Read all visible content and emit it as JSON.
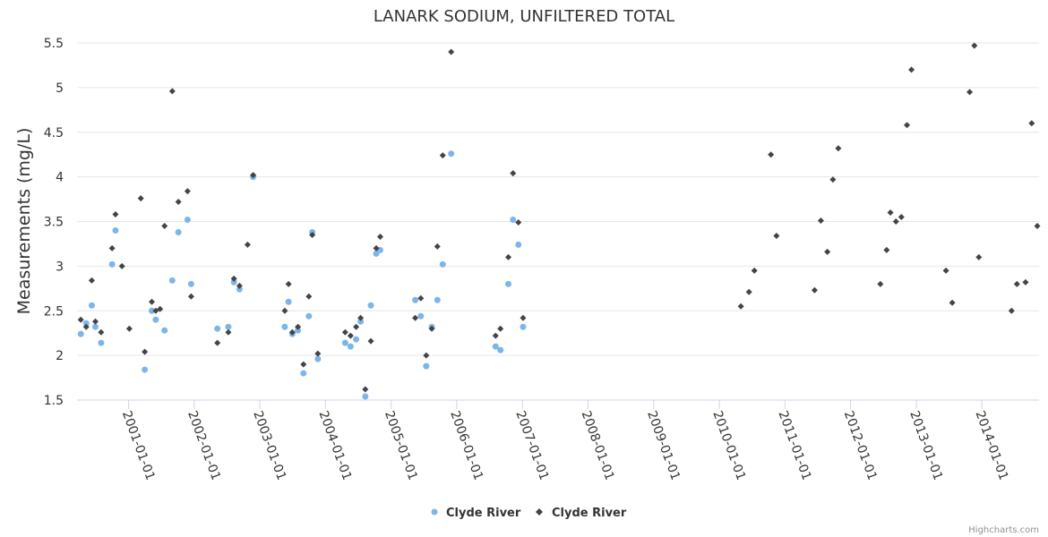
{
  "credits": "Highcharts.com",
  "chart_data": {
    "type": "scatter",
    "title": "LANARK SODIUM, UNFILTERED TOTAL",
    "xlabel": "",
    "ylabel": "Measurements (mg/L)",
    "ylim": [
      1.5,
      5.5
    ],
    "yticks": [
      "1.5",
      "2",
      "2.5",
      "3",
      "3.5",
      "4",
      "4.5",
      "5",
      "5.5"
    ],
    "xlim": [
      "2000-03-20",
      "2014-11-15"
    ],
    "xticks": [
      "2001-01-01",
      "2002-01-01",
      "2003-01-01",
      "2004-01-01",
      "2005-01-01",
      "2006-01-01",
      "2007-01-01",
      "2008-01-01",
      "2009-01-01",
      "2010-01-01",
      "2011-01-01",
      "2012-01-01",
      "2013-01-01",
      "2014-01-01"
    ],
    "grid": true,
    "legend": "bottom-center",
    "series": [
      {
        "name": "Clyde River",
        "marker": "circle",
        "color": "#7cb5ec",
        "points": [
          [
            "2000-04-10",
            2.24
          ],
          [
            "2000-05-10",
            2.36
          ],
          [
            "2000-06-10",
            2.56
          ],
          [
            "2000-06-30",
            2.32
          ],
          [
            "2000-08-01",
            2.14
          ],
          [
            "2000-10-01",
            3.02
          ],
          [
            "2000-10-20",
            3.4
          ],
          [
            "2001-04-01",
            1.84
          ],
          [
            "2001-05-10",
            2.5
          ],
          [
            "2001-06-01",
            2.4
          ],
          [
            "2001-07-20",
            2.28
          ],
          [
            "2001-09-01",
            2.84
          ],
          [
            "2001-10-05",
            3.38
          ],
          [
            "2001-11-25",
            3.52
          ],
          [
            "2001-12-15",
            2.8
          ],
          [
            "2002-05-10",
            2.3
          ],
          [
            "2002-07-10",
            2.32
          ],
          [
            "2002-08-10",
            2.82
          ],
          [
            "2002-09-10",
            2.74
          ],
          [
            "2002-11-25",
            4.0
          ],
          [
            "2003-05-20",
            2.32
          ],
          [
            "2003-06-10",
            2.6
          ],
          [
            "2003-07-01",
            2.24
          ],
          [
            "2003-08-01",
            2.28
          ],
          [
            "2003-09-01",
            1.8
          ],
          [
            "2003-10-01",
            2.44
          ],
          [
            "2003-10-20",
            3.38
          ],
          [
            "2003-11-20",
            1.96
          ],
          [
            "2004-04-20",
            2.14
          ],
          [
            "2004-05-20",
            2.1
          ],
          [
            "2004-06-20",
            2.18
          ],
          [
            "2004-07-15",
            2.38
          ],
          [
            "2004-08-10",
            1.54
          ],
          [
            "2004-09-10",
            2.56
          ],
          [
            "2004-10-10",
            3.14
          ],
          [
            "2004-11-01",
            3.18
          ],
          [
            "2005-05-15",
            2.62
          ],
          [
            "2005-06-15",
            2.44
          ],
          [
            "2005-07-15",
            1.88
          ],
          [
            "2005-08-15",
            2.32
          ],
          [
            "2005-09-15",
            2.62
          ],
          [
            "2005-10-15",
            3.02
          ],
          [
            "2005-12-01",
            4.26
          ],
          [
            "2006-08-05",
            2.1
          ],
          [
            "2006-09-01",
            2.06
          ],
          [
            "2006-10-15",
            2.8
          ],
          [
            "2006-11-10",
            3.52
          ],
          [
            "2006-12-10",
            3.24
          ],
          [
            "2007-01-05",
            2.32
          ]
        ]
      },
      {
        "name": "Clyde River",
        "marker": "diamond",
        "color": "#434348",
        "points": [
          [
            "2000-04-10",
            2.4
          ],
          [
            "2000-05-10",
            2.32
          ],
          [
            "2000-06-10",
            2.84
          ],
          [
            "2000-06-30",
            2.38
          ],
          [
            "2000-08-01",
            2.26
          ],
          [
            "2000-10-01",
            3.2
          ],
          [
            "2000-10-20",
            3.58
          ],
          [
            "2000-11-25",
            3.0
          ],
          [
            "2001-01-05",
            2.3
          ],
          [
            "2001-03-10",
            3.76
          ],
          [
            "2001-04-01",
            2.04
          ],
          [
            "2001-05-10",
            2.6
          ],
          [
            "2001-06-01",
            2.5
          ],
          [
            "2001-06-25",
            2.52
          ],
          [
            "2001-07-20",
            3.45
          ],
          [
            "2001-09-01",
            4.96
          ],
          [
            "2001-10-05",
            3.72
          ],
          [
            "2001-11-25",
            3.84
          ],
          [
            "2001-12-15",
            2.66
          ],
          [
            "2002-05-10",
            2.14
          ],
          [
            "2002-07-10",
            2.26
          ],
          [
            "2002-08-10",
            2.86
          ],
          [
            "2002-09-10",
            2.78
          ],
          [
            "2002-10-25",
            3.24
          ],
          [
            "2002-11-25",
            4.02
          ],
          [
            "2003-05-20",
            2.5
          ],
          [
            "2003-06-10",
            2.8
          ],
          [
            "2003-07-01",
            2.26
          ],
          [
            "2003-08-01",
            2.32
          ],
          [
            "2003-09-01",
            1.9
          ],
          [
            "2003-10-01",
            2.66
          ],
          [
            "2003-10-20",
            3.35
          ],
          [
            "2003-11-20",
            2.02
          ],
          [
            "2004-04-20",
            2.26
          ],
          [
            "2004-05-20",
            2.22
          ],
          [
            "2004-06-20",
            2.32
          ],
          [
            "2004-07-15",
            2.42
          ],
          [
            "2004-08-10",
            1.62
          ],
          [
            "2004-09-10",
            2.16
          ],
          [
            "2004-10-10",
            3.2
          ],
          [
            "2004-11-01",
            3.33
          ],
          [
            "2005-05-15",
            2.42
          ],
          [
            "2005-06-15",
            2.64
          ],
          [
            "2005-07-15",
            2.0
          ],
          [
            "2005-08-15",
            2.3
          ],
          [
            "2005-09-15",
            3.22
          ],
          [
            "2005-10-15",
            4.24
          ],
          [
            "2005-12-01",
            5.4
          ],
          [
            "2006-08-05",
            2.22
          ],
          [
            "2006-09-01",
            2.3
          ],
          [
            "2006-10-15",
            3.1
          ],
          [
            "2006-11-10",
            4.04
          ],
          [
            "2006-12-10",
            3.49
          ],
          [
            "2007-01-05",
            2.42
          ],
          [
            "2010-05-01",
            2.55
          ],
          [
            "2010-06-15",
            2.71
          ],
          [
            "2010-07-15",
            2.95
          ],
          [
            "2010-10-15",
            4.25
          ],
          [
            "2010-11-15",
            3.34
          ],
          [
            "2011-06-15",
            2.73
          ],
          [
            "2011-07-20",
            3.51
          ],
          [
            "2011-08-25",
            3.16
          ],
          [
            "2011-09-25",
            3.97
          ],
          [
            "2011-10-25",
            4.32
          ],
          [
            "2012-06-15",
            2.8
          ],
          [
            "2012-07-20",
            3.18
          ],
          [
            "2012-08-10",
            3.6
          ],
          [
            "2012-09-10",
            3.5
          ],
          [
            "2012-10-10",
            3.55
          ],
          [
            "2012-11-10",
            4.58
          ],
          [
            "2012-12-05",
            5.2
          ],
          [
            "2013-06-15",
            2.95
          ],
          [
            "2013-07-20",
            2.59
          ],
          [
            "2013-10-25",
            4.95
          ],
          [
            "2013-11-20",
            5.47
          ],
          [
            "2013-12-15",
            3.1
          ],
          [
            "2014-06-15",
            2.5
          ],
          [
            "2014-07-15",
            2.8
          ],
          [
            "2014-09-01",
            2.82
          ],
          [
            "2014-10-05",
            4.6
          ],
          [
            "2014-11-05",
            3.45
          ]
        ]
      }
    ]
  }
}
